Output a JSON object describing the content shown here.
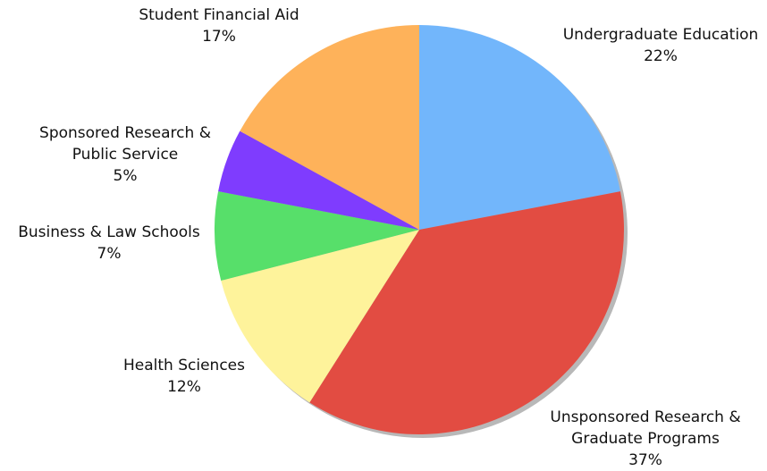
{
  "chart_data": {
    "type": "pie",
    "slices": [
      {
        "label": [
          "Undergraduate Education"
        ],
        "percent_label": "22%",
        "value": 22,
        "color": "#72b6fb"
      },
      {
        "label": [
          "Unsponsored Research &",
          "Graduate Programs"
        ],
        "percent_label": "37%",
        "value": 37,
        "color": "#e24c42"
      },
      {
        "label": [
          "Health Sciences"
        ],
        "percent_label": "12%",
        "value": 12,
        "color": "#fef39b"
      },
      {
        "label": [
          "Business & Law Schools"
        ],
        "percent_label": "7%",
        "value": 7,
        "color": "#57df6a"
      },
      {
        "label": [
          "Sponsored Research &",
          "Public Service"
        ],
        "percent_label": "5%",
        "value": 5,
        "color": "#7f3cfe"
      },
      {
        "label": [
          "Student Financial Aid"
        ],
        "percent_label": "17%",
        "value": 17,
        "color": "#feb25a"
      }
    ],
    "start_angle": "top (12 o'clock)",
    "direction": "clockwise"
  }
}
